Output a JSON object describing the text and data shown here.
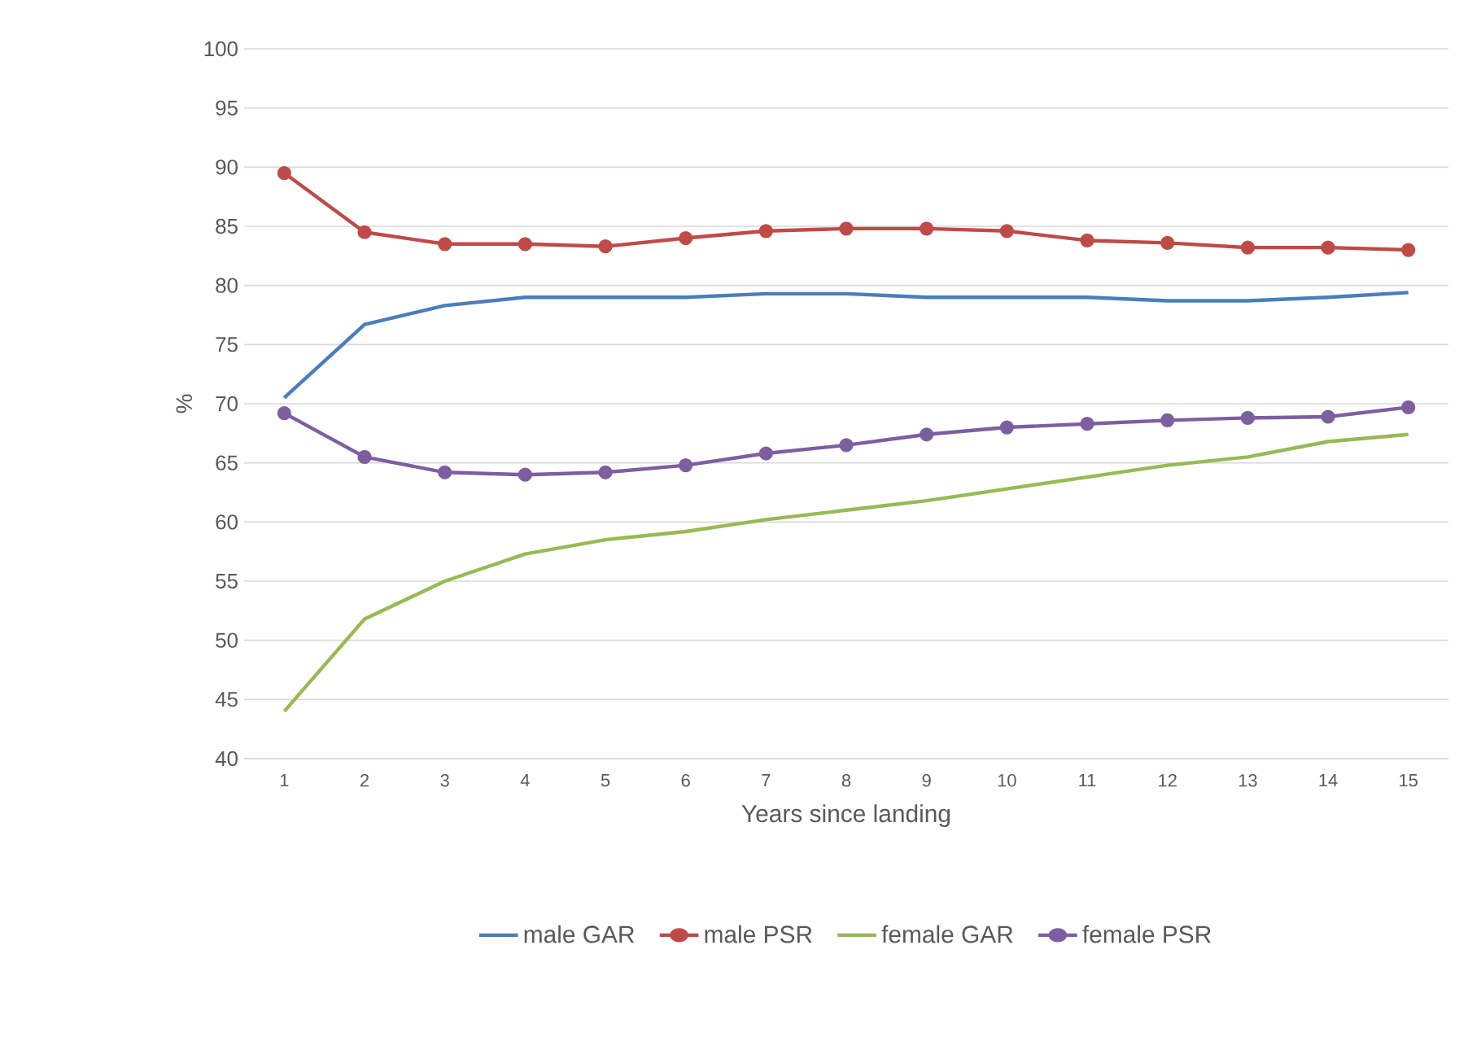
{
  "chart_data": {
    "type": "line",
    "xlabel": "Years since landing",
    "ylabel": "%",
    "categories": [
      "1",
      "2",
      "3",
      "4",
      "5",
      "6",
      "7",
      "8",
      "9",
      "10",
      "11",
      "12",
      "13",
      "14",
      "15"
    ],
    "series": [
      {
        "name": "male GAR",
        "color": "#4a7ebb",
        "marker": "none",
        "values": [
          70.5,
          76.7,
          78.3,
          79,
          79,
          79,
          79.3,
          79.3,
          79,
          79,
          79,
          78.7,
          78.7,
          79,
          79.4
        ]
      },
      {
        "name": "male PSR",
        "color": "#be4b48",
        "marker": "circle",
        "values": [
          89.5,
          84.5,
          83.5,
          83.5,
          83.3,
          84,
          84.6,
          84.8,
          84.8,
          84.6,
          83.8,
          83.6,
          83.2,
          83.2,
          83
        ]
      },
      {
        "name": "female GAR",
        "color": "#98b954",
        "marker": "none",
        "values": [
          44,
          51.8,
          55,
          57.3,
          58.5,
          59.2,
          60.2,
          61,
          61.8,
          62.8,
          63.8,
          64.8,
          65.5,
          66.8,
          67.4
        ]
      },
      {
        "name": "female PSR",
        "color": "#7d5fa0",
        "marker": "circle",
        "values": [
          69.2,
          65.5,
          64.2,
          64,
          64.2,
          64.8,
          65.8,
          66.5,
          67.4,
          68,
          68.3,
          68.6,
          68.8,
          68.9,
          69.7
        ]
      }
    ],
    "ylim": [
      40,
      100
    ],
    "yticks": [
      40,
      45,
      50,
      55,
      60,
      65,
      70,
      75,
      80,
      85,
      90,
      95,
      100
    ],
    "grid": "y",
    "legend": "bottom",
    "line_style": "solid"
  }
}
